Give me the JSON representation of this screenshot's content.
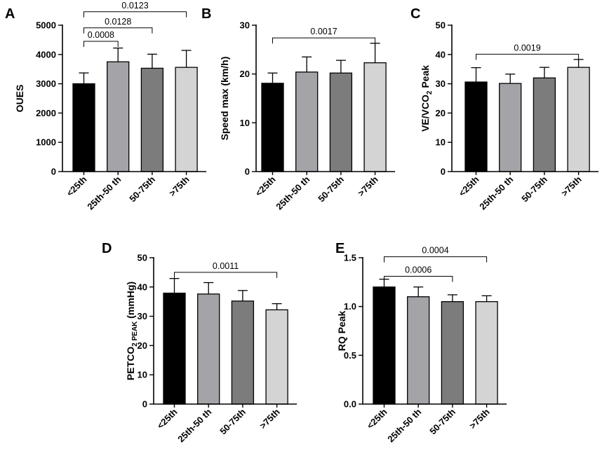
{
  "figure": {
    "categories": [
      "<25th",
      "25th-50 th",
      "50-75th",
      ">75th"
    ],
    "bar_colors": [
      "#000000",
      "#a3a3a8",
      "#7c7c7c",
      "#d4d4d4"
    ],
    "edge_color": "#000000"
  },
  "chart_data": [
    {
      "panel": "A",
      "type": "bar",
      "title": "",
      "ylabel": "OUES",
      "ylim": [
        0,
        5000
      ],
      "yticks": [
        0,
        1000,
        2000,
        3000,
        4000,
        5000
      ],
      "categories": [
        "<25th",
        "25th-50 th",
        "50-75th",
        ">75th"
      ],
      "values": [
        3000,
        3750,
        3530,
        3560
      ],
      "errors": [
        370,
        470,
        480,
        580
      ],
      "brackets": [
        {
          "from": 0,
          "to": 1,
          "label": "0.0008",
          "level": 4450
        },
        {
          "from": 0,
          "to": 2,
          "label": "0.0128",
          "level": 4910
        },
        {
          "from": 0,
          "to": 3,
          "label": "0.0123",
          "level": 5460
        }
      ]
    },
    {
      "panel": "B",
      "type": "bar",
      "title": "",
      "ylabel": "Speed max (km/h)",
      "ylim": [
        0,
        30
      ],
      "yticks": [
        0,
        10,
        20,
        30
      ],
      "categories": [
        "<25th",
        "25th-50 th",
        "50-75th",
        ">75th"
      ],
      "values": [
        18.1,
        20.4,
        20.2,
        22.3
      ],
      "errors": [
        2.1,
        3.1,
        2.6,
        4.0
      ],
      "brackets": [
        {
          "from": 0,
          "to": 3,
          "label": "0.0017",
          "level": 27.4
        }
      ]
    },
    {
      "panel": "C",
      "type": "bar",
      "title": "",
      "ylabel": "VE/VCO2 Peak",
      "ylabel_parts": [
        "VE/VCO",
        "2",
        " Peak"
      ],
      "ylim": [
        0,
        50
      ],
      "yticks": [
        0,
        10,
        20,
        30,
        40,
        50
      ],
      "categories": [
        "<25th",
        "25th-50 th",
        "50-75th",
        ">75th"
      ],
      "values": [
        30.6,
        30.1,
        32.0,
        35.6
      ],
      "errors": [
        4.9,
        3.2,
        3.6,
        2.7
      ],
      "brackets": [
        {
          "from": 0,
          "to": 3,
          "label": "0.0019",
          "level": 40.1
        }
      ]
    },
    {
      "panel": "D",
      "type": "bar",
      "title": "",
      "ylabel": "PETCO2 PEAK (mmHg)",
      "ylabel_parts": [
        "PETCO",
        "2 PEAK",
        " (mmHg)"
      ],
      "ylim": [
        0,
        50
      ],
      "yticks": [
        0,
        10,
        20,
        30,
        40,
        50
      ],
      "categories": [
        "<25th",
        "25th-50 th",
        "50-75th",
        ">75th"
      ],
      "values": [
        37.9,
        37.6,
        35.2,
        32.2
      ],
      "errors": [
        5.0,
        3.9,
        3.6,
        2.1
      ],
      "brackets": [
        {
          "from": 0,
          "to": 3,
          "label": "0.0011",
          "level": 45.0
        }
      ]
    },
    {
      "panel": "E",
      "type": "bar",
      "title": "",
      "ylabel": "RQ Peak",
      "ylim": [
        0,
        1.5
      ],
      "yticks": [
        0.0,
        0.5,
        1.0,
        1.5
      ],
      "ytick_decimals": 1,
      "categories": [
        "<25th",
        "25th-50 th",
        "50-75th",
        ">75th"
      ],
      "values": [
        1.2,
        1.1,
        1.05,
        1.05
      ],
      "errors": [
        0.08,
        0.1,
        0.07,
        0.06
      ],
      "brackets": [
        {
          "from": 0,
          "to": 2,
          "label": "0.0006",
          "level": 1.31
        },
        {
          "from": 0,
          "to": 3,
          "label": "0.0004",
          "level": 1.51
        }
      ]
    }
  ]
}
